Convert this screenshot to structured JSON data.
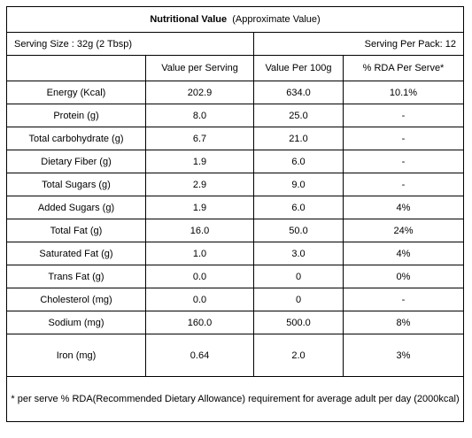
{
  "title": {
    "main": "Nutritional Value",
    "note": "(Approximate Value)"
  },
  "serving": {
    "size": "Serving Size : 32g (2 Tbsp)",
    "per_pack": "Serving Per Pack: 12"
  },
  "table": {
    "columns": [
      "Value per Serving",
      "Value Per 100g",
      "% RDA Per Serve*"
    ],
    "rows": [
      [
        "Energy (Kcal)",
        "202.9",
        "634.0",
        "10.1%"
      ],
      [
        "Protein (g)",
        "8.0",
        "25.0",
        "-"
      ],
      [
        "Total carbohydrate (g)",
        "6.7",
        "21.0",
        "-"
      ],
      [
        "Dietary Fiber (g)",
        "1.9",
        "6.0",
        "-"
      ],
      [
        "Total Sugars (g)",
        "2.9",
        "9.0",
        "-"
      ],
      [
        "Added Sugars (g)",
        "1.9",
        "6.0",
        "4%"
      ],
      [
        "Total Fat (g)",
        "16.0",
        "50.0",
        "24%"
      ],
      [
        "Saturated Fat (g)",
        "1.0",
        "3.0",
        "4%"
      ],
      [
        "Trans Fat (g)",
        "0.0",
        "0",
        "0%"
      ],
      [
        "Cholesterol (mg)",
        "0.0",
        "0",
        "-"
      ],
      [
        "Sodium (mg)",
        "160.0",
        "500.0",
        "8%"
      ],
      [
        "Iron (mg)",
        "0.64",
        "2.0",
        "3%"
      ]
    ]
  },
  "footnote": "* per serve % RDA(Recommended Dietary Allowance) requirement for average adult per day (2000kcal)"
}
